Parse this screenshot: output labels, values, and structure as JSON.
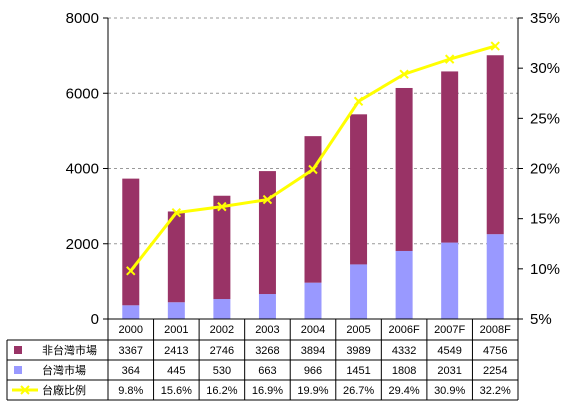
{
  "chart_data": {
    "type": "bar",
    "categories": [
      "2000",
      "2001",
      "2002",
      "2003",
      "2004",
      "2005",
      "2006F",
      "2007F",
      "2008F"
    ],
    "series": [
      {
        "name": "非台灣市場",
        "kind": "stacked-bar",
        "axis": "left",
        "color": "#993366",
        "values": [
          3367,
          2413,
          2746,
          3268,
          3894,
          3989,
          4332,
          4549,
          4756
        ],
        "labels": [
          "3367",
          "2413",
          "2746",
          "3268",
          "3894",
          "3989",
          "4332",
          "4549",
          "4756"
        ]
      },
      {
        "name": "台灣市場",
        "kind": "stacked-bar",
        "axis": "left",
        "color": "#9999FF",
        "values": [
          364,
          445,
          530,
          663,
          966,
          1451,
          1808,
          2031,
          2254
        ],
        "labels": [
          "364",
          "445",
          "530",
          "663",
          "966",
          "1451",
          "1808",
          "2031",
          "2254"
        ]
      },
      {
        "name": "台廠比例",
        "kind": "line",
        "axis": "right",
        "color": "#FFFF00",
        "values": [
          9.8,
          15.6,
          16.2,
          16.9,
          19.9,
          26.7,
          29.4,
          30.9,
          32.2
        ],
        "labels": [
          "9.8%",
          "15.6%",
          "16.2%",
          "16.9%",
          "19.9%",
          "26.7%",
          "29.4%",
          "30.9%",
          "32.2%"
        ]
      }
    ],
    "ylim": [
      0,
      8000
    ],
    "y_ticks": [
      "0",
      "2000",
      "4000",
      "6000",
      "8000"
    ],
    "y2lim": [
      5,
      35
    ],
    "y2_ticks": [
      "5%",
      "10%",
      "15%",
      "20%",
      "25%",
      "30%",
      "35%"
    ],
    "grid": "horizontal dashed",
    "legend": "data table below chart"
  }
}
